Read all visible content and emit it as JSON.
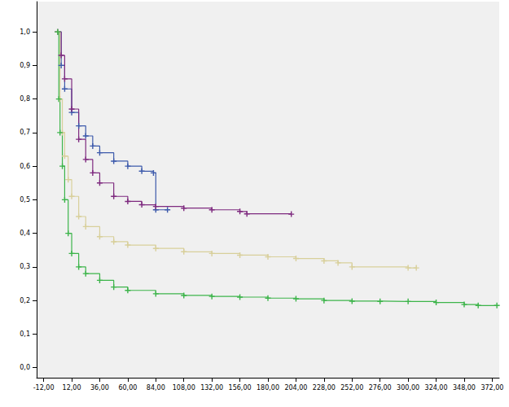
{
  "chart_data": {
    "type": "line",
    "grid": false,
    "marker": "plus",
    "line_style": "step",
    "xlim": [
      -18,
      378
    ],
    "ylim": [
      -0.03,
      1.09
    ],
    "xticks": [
      {
        "value": -12,
        "label": "-12,00"
      },
      {
        "value": 12,
        "label": "12,00"
      },
      {
        "value": 36,
        "label": "36,00"
      },
      {
        "value": 60,
        "label": "60,00"
      },
      {
        "value": 84,
        "label": "84,00"
      },
      {
        "value": 108,
        "label": "108,00"
      },
      {
        "value": 132,
        "label": "132,00"
      },
      {
        "value": 156,
        "label": "156,00"
      },
      {
        "value": 180,
        "label": "180,00"
      },
      {
        "value": 204,
        "label": "204,00"
      },
      {
        "value": 228,
        "label": "228,00"
      },
      {
        "value": 252,
        "label": "252,00"
      },
      {
        "value": 276,
        "label": "276,00"
      },
      {
        "value": 300,
        "label": "300,00"
      },
      {
        "value": 324,
        "label": "324,00"
      },
      {
        "value": 348,
        "label": "348,00"
      },
      {
        "value": 372,
        "label": "372,00"
      }
    ],
    "yticks": [
      {
        "value": 0,
        "label": "0,0"
      },
      {
        "value": 0.1,
        "label": "0,1"
      },
      {
        "value": 0.2,
        "label": "0,2"
      },
      {
        "value": 0.3,
        "label": "0,3"
      },
      {
        "value": 0.4,
        "label": "0,4"
      },
      {
        "value": 0.5,
        "label": "0,5"
      },
      {
        "value": 0.6,
        "label": "0,6"
      },
      {
        "value": 0.7,
        "label": "0,7"
      },
      {
        "value": 0.8,
        "label": "0,8"
      },
      {
        "value": 0.9,
        "label": "0,9"
      },
      {
        "value": 1,
        "label": "1,0"
      }
    ],
    "series": [
      {
        "color": "#3d5aab",
        "x": [
          0,
          3,
          6,
          12,
          18,
          24,
          30,
          36,
          48,
          60,
          72,
          82,
          84,
          94
        ],
        "values": [
          1.0,
          0.9,
          0.83,
          0.76,
          0.72,
          0.69,
          0.66,
          0.64,
          0.615,
          0.6,
          0.585,
          0.58,
          0.47,
          0.47
        ]
      },
      {
        "color": "#7e2a7f",
        "x": [
          0,
          3,
          6,
          12,
          18,
          24,
          30,
          36,
          48,
          60,
          72,
          84,
          108,
          132,
          156,
          162,
          200
        ],
        "values": [
          1.0,
          0.93,
          0.86,
          0.77,
          0.68,
          0.62,
          0.58,
          0.55,
          0.51,
          0.495,
          0.485,
          0.48,
          0.475,
          0.47,
          0.465,
          0.458,
          0.457
        ]
      },
      {
        "color": "#d8cf9a",
        "x": [
          0,
          2,
          4,
          6,
          9,
          12,
          18,
          24,
          36,
          48,
          60,
          84,
          108,
          132,
          156,
          180,
          204,
          228,
          240,
          252,
          300,
          307
        ],
        "values": [
          1.0,
          0.8,
          0.7,
          0.63,
          0.56,
          0.51,
          0.45,
          0.42,
          0.39,
          0.375,
          0.365,
          0.355,
          0.345,
          0.34,
          0.335,
          0.33,
          0.325,
          0.318,
          0.312,
          0.3,
          0.297,
          0.297
        ]
      },
      {
        "color": "#3cb44a",
        "x": [
          0,
          1,
          2,
          4,
          6,
          9,
          12,
          18,
          24,
          36,
          48,
          60,
          84,
          108,
          132,
          156,
          180,
          204,
          228,
          252,
          276,
          300,
          324,
          348,
          360,
          376
        ],
        "values": [
          1.0,
          0.8,
          0.7,
          0.6,
          0.5,
          0.4,
          0.34,
          0.3,
          0.28,
          0.26,
          0.24,
          0.23,
          0.22,
          0.215,
          0.212,
          0.21,
          0.207,
          0.205,
          0.2,
          0.198,
          0.197,
          0.197,
          0.194,
          0.188,
          0.185,
          0.185
        ]
      }
    ]
  }
}
